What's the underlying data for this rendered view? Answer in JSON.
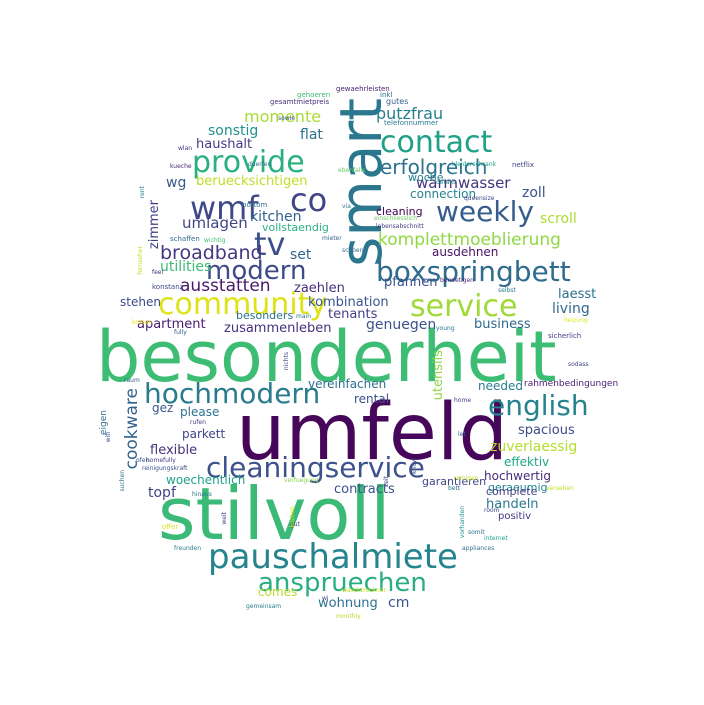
{
  "word_cloud": {
    "words": [
      {
        "text": "besonderheit",
        "color": "#3dbc74"
      },
      {
        "text": "umfeld",
        "color": "#46075a"
      },
      {
        "text": "stilvoll",
        "color": "#3aba76"
      },
      {
        "text": "smart",
        "color": "#2a778e"
      },
      {
        "text": "pauschalmiete",
        "color": "#25848e"
      },
      {
        "text": "cleaningservice",
        "color": "#3b528b"
      },
      {
        "text": "boxspringbett",
        "color": "#2f6c8e"
      },
      {
        "text": "community",
        "color": "#dde318"
      },
      {
        "text": "service",
        "color": "#a0da39"
      },
      {
        "text": "provide",
        "color": "#2ab07f"
      },
      {
        "text": "contact",
        "color": "#1fa188"
      },
      {
        "text": "hochmodern",
        "color": "#287c8e"
      },
      {
        "text": "english",
        "color": "#25838e"
      },
      {
        "text": "anspruechen",
        "color": "#28ae80"
      },
      {
        "text": "weekly",
        "color": "#365d8d"
      },
      {
        "text": "modern",
        "color": "#3e4a89"
      },
      {
        "text": "wmf",
        "color": "#3e4989"
      },
      {
        "text": "tv",
        "color": "#3b518b"
      },
      {
        "text": "co",
        "color": "#414487"
      },
      {
        "text": "komplettmoeblierung",
        "color": "#90d743"
      },
      {
        "text": "erfolgreich",
        "color": "#2c728e"
      },
      {
        "text": "ausstatten",
        "color": "#48186a"
      },
      {
        "text": "broadband",
        "color": "#453781"
      },
      {
        "text": "cookware",
        "color": "#33638d"
      },
      {
        "text": "momente",
        "color": "#a8db34"
      },
      {
        "text": "putzfrau",
        "color": "#277f8e"
      },
      {
        "text": "warmwasser",
        "color": "#46337e"
      },
      {
        "text": "sonstig",
        "color": "#21918c"
      },
      {
        "text": "haushalt",
        "color": "#443a83"
      },
      {
        "text": "flat",
        "color": "#2e6e8e"
      },
      {
        "text": "beruecksichtigen",
        "color": "#bddf26"
      },
      {
        "text": "woche",
        "color": "#26828e"
      },
      {
        "text": "zoll",
        "color": "#3b528b"
      },
      {
        "text": "wg",
        "color": "#38598c"
      },
      {
        "text": "connection",
        "color": "#25838e"
      },
      {
        "text": "umlagen",
        "color": "#414487"
      },
      {
        "text": "kitchen",
        "color": "#34608d"
      },
      {
        "text": "cleaning",
        "color": "#440154"
      },
      {
        "text": "scroll",
        "color": "#addc30"
      },
      {
        "text": "zimmer",
        "color": "#424086"
      },
      {
        "text": "vollstaendig",
        "color": "#2ab07f"
      },
      {
        "text": "ausdehnen",
        "color": "#481467"
      },
      {
        "text": "set",
        "color": "#31688e"
      },
      {
        "text": "living",
        "color": "#31688e"
      },
      {
        "text": "utilities",
        "color": "#3dbc74"
      },
      {
        "text": "pfannen",
        "color": "#3b528b"
      },
      {
        "text": "zaehlen",
        "color": "#46307e"
      },
      {
        "text": "laesst",
        "color": "#2d708e"
      },
      {
        "text": "stehen",
        "color": "#3e4a89"
      },
      {
        "text": "kombination",
        "color": "#39568c"
      },
      {
        "text": "tenants",
        "color": "#433e85"
      },
      {
        "text": "besonders",
        "color": "#2c738e"
      },
      {
        "text": "apartment",
        "color": "#481c6e"
      },
      {
        "text": "zusammenleben",
        "color": "#46307e"
      },
      {
        "text": "genuegen",
        "color": "#3b528b"
      },
      {
        "text": "business",
        "color": "#31688e"
      },
      {
        "text": "vereinfachen",
        "color": "#2d708e"
      },
      {
        "text": "needed",
        "color": "#287c8e"
      },
      {
        "text": "rahmenbedingungen",
        "color": "#482173"
      },
      {
        "text": "rental",
        "color": "#3c4f8a"
      },
      {
        "text": "gez",
        "color": "#39568c"
      },
      {
        "text": "please",
        "color": "#2c728e"
      },
      {
        "text": "spacious",
        "color": "#3e4a89"
      },
      {
        "text": "parkett",
        "color": "#404588"
      },
      {
        "text": "zuverlaessig",
        "color": "#b5de2b"
      },
      {
        "text": "flexible",
        "color": "#46337e"
      },
      {
        "text": "effektiv",
        "color": "#22a884"
      },
      {
        "text": "hochwertig",
        "color": "#472c7a"
      },
      {
        "text": "woechentlich",
        "color": "#1fa188"
      },
      {
        "text": "geraeumig",
        "color": "#25848e"
      },
      {
        "text": "contracts",
        "color": "#3b528b"
      },
      {
        "text": "garantieren",
        "color": "#404588"
      },
      {
        "text": "topf",
        "color": "#424086"
      },
      {
        "text": "complete",
        "color": "#424086"
      },
      {
        "text": "handeln",
        "color": "#2a788e"
      },
      {
        "text": "positiv",
        "color": "#453781"
      },
      {
        "text": "comes",
        "color": "#b8de29"
      },
      {
        "text": "cm",
        "color": "#39568c"
      },
      {
        "text": "wohnung",
        "color": "#2c728e"
      },
      {
        "text": "utensils",
        "color": "#8fd744"
      },
      {
        "text": "gewaehrleisten",
        "color": "#482374"
      },
      {
        "text": "inkl",
        "color": "#2e6f8e"
      },
      {
        "text": "gehoeren",
        "color": "#3cbb75"
      },
      {
        "text": "gesamtmietpreis",
        "color": "#46307e"
      },
      {
        "text": "gutes",
        "color": "#33638d"
      },
      {
        "text": "telefonnummer",
        "color": "#2a788e"
      },
      {
        "text": "sowie",
        "color": "#3b528b"
      },
      {
        "text": "wlan",
        "color": "#46327e"
      },
      {
        "text": "kueche",
        "color": "#482878"
      },
      {
        "text": "duerfen",
        "color": "#2c728e"
      },
      {
        "text": "kleiderschrank",
        "color": "#1f9e89"
      },
      {
        "text": "netflix",
        "color": "#414487"
      },
      {
        "text": "ebenfalls",
        "color": "#5ec962"
      },
      {
        "text": "details",
        "color": "#21918c"
      },
      {
        "text": "queensize",
        "color": "#404688"
      },
      {
        "text": "rent",
        "color": "#277f8e"
      },
      {
        "text": "bottom",
        "color": "#2c728e"
      },
      {
        "text": "via",
        "color": "#2a788e"
      },
      {
        "text": "einschliesslich",
        "color": "#6ece58"
      },
      {
        "text": "lebensabschnitt",
        "color": "#443b84"
      },
      {
        "text": "schaffen",
        "color": "#2e6e8e"
      },
      {
        "text": "wichtig",
        "color": "#3dbc74"
      },
      {
        "text": "mieter",
        "color": "#33638d"
      },
      {
        "text": "schoen",
        "color": "#31688e"
      },
      {
        "text": "fernseher",
        "color": "#c2df23"
      },
      {
        "text": "feel",
        "color": "#472d7b"
      },
      {
        "text": "konstanz",
        "color": "#3e4989"
      },
      {
        "text": "benoetigen",
        "color": "#482777"
      },
      {
        "text": "selbst",
        "color": "#2a768e"
      },
      {
        "text": "main",
        "color": "#2d718e"
      },
      {
        "text": "kosten",
        "color": "#e5e419"
      },
      {
        "text": "fully",
        "color": "#365d8d"
      },
      {
        "text": "young",
        "color": "#2a788e"
      },
      {
        "text": "heizung",
        "color": "#ddea1f"
      },
      {
        "text": "sicherlich",
        "color": "#453882"
      },
      {
        "text": "sodass",
        "color": "#3f4788"
      },
      {
        "text": "nichts",
        "color": "#3e4a89"
      },
      {
        "text": "raum",
        "color": "#33638d"
      },
      {
        "text": "home",
        "color": "#433e85"
      },
      {
        "text": "eigen",
        "color": "#2c718e"
      },
      {
        "text": "rufen",
        "color": "#453581"
      },
      {
        "text": "wifi",
        "color": "#3b528b"
      },
      {
        "text": "let",
        "color": "#34608d"
      },
      {
        "text": "homefully",
        "color": "#443983"
      },
      {
        "text": "ofen",
        "color": "#39558c"
      },
      {
        "text": "reinigungskraft",
        "color": "#3c4f8a"
      },
      {
        "text": "suchen",
        "color": "#2c718e"
      },
      {
        "text": "hinaus",
        "color": "#2c738e"
      },
      {
        "text": "verfuegung",
        "color": "#84d44b"
      },
      {
        "text": "vorhanden",
        "color": "#21908d"
      },
      {
        "text": "room",
        "color": "#3e4989"
      },
      {
        "text": "reinigen",
        "color": "#c0df25"
      },
      {
        "text": "bett",
        "color": "#2c728e"
      },
      {
        "text": "versehen",
        "color": "#bddf26"
      },
      {
        "text": "weit",
        "color": "#404588"
      },
      {
        "text": "gut",
        "color": "#423f85"
      },
      {
        "text": "offer",
        "color": "#dde318"
      },
      {
        "text": "zeit",
        "color": "#3e4a89"
      },
      {
        "text": "kochen",
        "color": "#d2e21b"
      },
      {
        "text": "somit",
        "color": "#2e6e8e"
      },
      {
        "text": "internet",
        "color": "#1fa287"
      },
      {
        "text": "freunden",
        "color": "#287d8e"
      },
      {
        "text": "appliances",
        "color": "#2c718e"
      },
      {
        "text": "gemeinsam",
        "color": "#287c8e"
      },
      {
        "text": "waschtrockner",
        "color": "#c8e020"
      },
      {
        "text": "wi",
        "color": "#404588"
      },
      {
        "text": "monthly",
        "color": "#b5de2b"
      },
      {
        "text": "know",
        "color": "#3e4989"
      }
    ]
  }
}
